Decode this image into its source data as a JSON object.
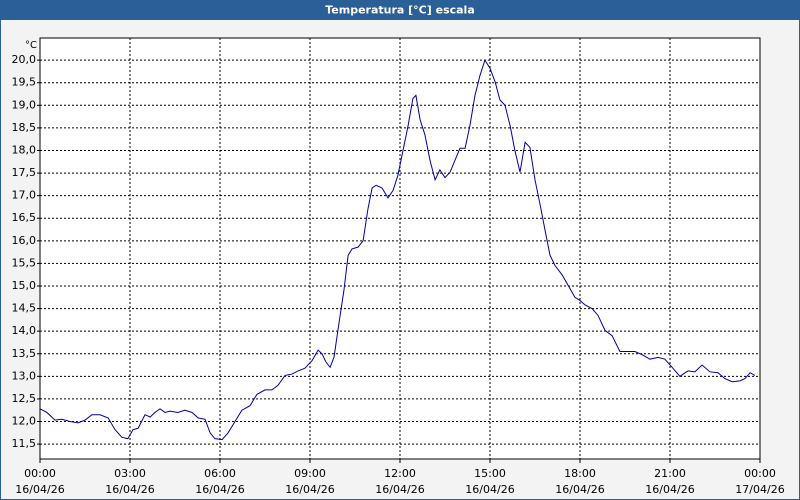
{
  "chart_data": {
    "type": "line",
    "title": "Temperatura [°C] escala",
    "y_unit": "°C",
    "x": [
      0,
      0.23,
      0.5,
      0.73,
      1.0,
      1.27,
      1.5,
      1.73,
      2.0,
      2.27,
      2.5,
      2.73,
      2.93,
      3.1,
      3.27,
      3.5,
      3.67,
      3.83,
      4.0,
      4.17,
      4.33,
      4.6,
      4.83,
      5.07,
      5.27,
      5.5,
      5.67,
      5.83,
      6.07,
      6.27,
      6.5,
      6.73,
      7.0,
      7.23,
      7.5,
      7.73,
      7.93,
      8.17,
      8.4,
      8.6,
      8.83,
      9.07,
      9.27,
      9.4,
      9.53,
      9.67,
      9.8,
      9.93,
      10.13,
      10.27,
      10.4,
      10.6,
      10.77,
      10.93,
      11.07,
      11.2,
      11.4,
      11.6,
      11.77,
      11.93,
      12.1,
      12.27,
      12.43,
      12.53,
      12.67,
      12.83,
      13.0,
      13.17,
      13.33,
      13.5,
      13.67,
      13.83,
      14.0,
      14.17,
      14.33,
      14.5,
      14.67,
      14.83,
      15.0,
      15.17,
      15.33,
      15.5,
      15.67,
      15.83,
      16.0,
      16.17,
      16.33,
      16.5,
      16.67,
      16.83,
      17.0,
      17.17,
      17.4,
      17.6,
      17.83,
      18.0,
      18.17,
      18.4,
      18.6,
      18.83,
      19.07,
      19.33,
      19.6,
      19.83,
      20.07,
      20.33,
      20.6,
      20.83,
      21.07,
      21.33,
      21.6,
      21.83,
      22.07,
      22.33,
      22.6,
      22.83,
      23.07,
      23.33,
      23.5,
      23.67,
      23.83
    ],
    "series": [
      {
        "name": "Temperatura",
        "color": "#0000a0",
        "values": [
          12.28,
          12.2,
          12.03,
          12.05,
          12.0,
          11.97,
          12.03,
          12.15,
          12.15,
          12.08,
          11.82,
          11.65,
          11.62,
          11.82,
          11.85,
          12.15,
          12.1,
          12.2,
          12.28,
          12.2,
          12.23,
          12.2,
          12.25,
          12.2,
          12.08,
          12.05,
          11.75,
          11.62,
          11.6,
          11.75,
          12.0,
          12.25,
          12.35,
          12.6,
          12.7,
          12.7,
          12.8,
          13.02,
          13.05,
          13.12,
          13.18,
          13.35,
          13.58,
          13.5,
          13.32,
          13.2,
          13.42,
          14.02,
          14.9,
          15.68,
          15.82,
          15.86,
          16.0,
          16.7,
          17.17,
          17.23,
          17.17,
          16.95,
          17.12,
          17.45,
          18.0,
          18.55,
          19.15,
          19.22,
          18.68,
          18.35,
          17.78,
          17.35,
          17.57,
          17.4,
          17.52,
          17.78,
          18.05,
          18.05,
          18.55,
          19.22,
          19.67,
          20.0,
          19.82,
          19.52,
          19.12,
          19.0,
          18.55,
          18.0,
          17.52,
          18.18,
          18.07,
          17.35,
          16.8,
          16.25,
          15.68,
          15.45,
          15.25,
          15.02,
          14.75,
          14.68,
          14.58,
          14.5,
          14.35,
          14.02,
          13.9,
          13.55,
          13.55,
          13.55,
          13.48,
          13.38,
          13.42,
          13.38,
          13.2,
          13.0,
          13.12,
          13.1,
          13.25,
          13.1,
          13.08,
          12.95,
          12.88,
          12.9,
          12.95,
          13.08,
          13.02
        ]
      }
    ],
    "xlim": [
      0,
      24
    ],
    "xticks": [
      {
        "value": 0,
        "label": "00:00"
      },
      {
        "value": 3,
        "label": "03:00"
      },
      {
        "value": 6,
        "label": "06:00"
      },
      {
        "value": 9,
        "label": "09:00"
      },
      {
        "value": 12,
        "label": "12:00"
      },
      {
        "value": 15,
        "label": "15:00"
      },
      {
        "value": 18,
        "label": "18:00"
      },
      {
        "value": 21,
        "label": "21:00"
      },
      {
        "value": 24,
        "label": "00:00"
      }
    ],
    "xtick_dates": [
      "16/04/26",
      "16/04/26",
      "16/04/26",
      "16/04/26",
      "16/04/26",
      "16/04/26",
      "16/04/26",
      "16/04/26",
      "17/04/26"
    ],
    "ylim": [
      11.17,
      20.49
    ],
    "yticks": [
      {
        "value": 11.5,
        "label": "11,5"
      },
      {
        "value": 12,
        "label": "12,0"
      },
      {
        "value": 12.5,
        "label": "12,5"
      },
      {
        "value": 13,
        "label": "13,0"
      },
      {
        "value": 13.5,
        "label": "13,5"
      },
      {
        "value": 14,
        "label": "14,0"
      },
      {
        "value": 14.5,
        "label": "14,5"
      },
      {
        "value": 15,
        "label": "15,0"
      },
      {
        "value": 15.5,
        "label": "15,5"
      },
      {
        "value": 16,
        "label": "16,0"
      },
      {
        "value": 16.5,
        "label": "16,5"
      },
      {
        "value": 17,
        "label": "17,0"
      },
      {
        "value": 17.5,
        "label": "17,5"
      },
      {
        "value": 18,
        "label": "18,0"
      },
      {
        "value": 18.5,
        "label": "18,5"
      },
      {
        "value": 19,
        "label": "19,0"
      },
      {
        "value": 19.5,
        "label": "19,5"
      },
      {
        "value": 20,
        "label": "20,0"
      }
    ],
    "grid": true
  }
}
